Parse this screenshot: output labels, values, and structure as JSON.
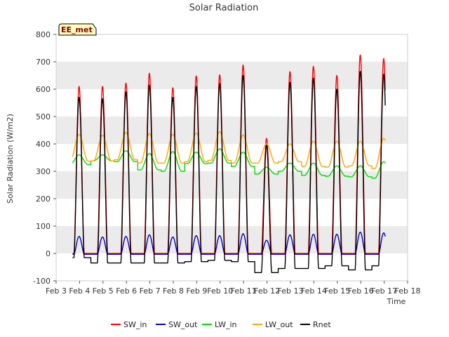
{
  "chart_data": {
    "type": "line",
    "title": "Solar Radiation",
    "xlabel": "Time",
    "ylabel": "Solar Radiation (W/m2)",
    "ylim": [
      -100,
      800
    ],
    "yticks": [
      -100,
      0,
      100,
      200,
      300,
      400,
      500,
      600,
      700,
      800
    ],
    "xlim": [
      3,
      18
    ],
    "xtick_values": [
      3,
      4,
      5,
      6,
      7,
      8,
      9,
      10,
      11,
      12,
      13,
      14,
      15,
      16,
      17,
      18
    ],
    "xtick_labels": [
      "Feb 3",
      "Feb 4",
      "Feb 5",
      "Feb 6",
      "Feb 7",
      "Feb 8",
      "Feb 9",
      "Feb 10",
      "Feb 11",
      "Feb 12",
      "Feb 13",
      "Feb 14",
      "Feb 15",
      "Feb 16",
      "Feb 17",
      "Feb 18"
    ],
    "grid": "horizontal bands",
    "station_label": "EE_met",
    "legend_position": "bottom",
    "day_centers": [
      3.98,
      4.98,
      5.98,
      6.98,
      7.98,
      8.98,
      9.98,
      10.98,
      11.98,
      12.98,
      13.98,
      14.98,
      15.98,
      16.98
    ],
    "series": [
      {
        "name": "SW_in",
        "color": "#ff0000",
        "kind": "daily_peak",
        "night": 0,
        "peaks": [
          610,
          610,
          622,
          658,
          605,
          648,
          652,
          688,
          420,
          664,
          683,
          650,
          725,
          712
        ]
      },
      {
        "name": "SW_out",
        "color": "#0000cc",
        "kind": "daily_peak",
        "night": -3,
        "peaks": [
          62,
          60,
          62,
          68,
          60,
          65,
          65,
          72,
          48,
          68,
          70,
          70,
          78,
          75
        ]
      },
      {
        "name": "LW_in",
        "color": "#00dd00",
        "kind": "daily_smooth",
        "night": [
          325,
          338,
          335,
          305,
          300,
          328,
          330,
          318,
          290,
          300,
          285,
          282,
          280,
          275
        ],
        "day": [
          360,
          360,
          375,
          365,
          372,
          370,
          382,
          370,
          315,
          330,
          330,
          320,
          320,
          335
        ]
      },
      {
        "name": "LW_out",
        "color": "#ffa500",
        "kind": "daily_smooth",
        "night": [
          337,
          338,
          342,
          330,
          330,
          335,
          340,
          330,
          330,
          335,
          318,
          315,
          320,
          310
        ],
        "day": [
          435,
          432,
          442,
          438,
          435,
          440,
          445,
          432,
          400,
          400,
          410,
          410,
          410,
          420
        ]
      },
      {
        "name": "Rnet",
        "color": "#000000",
        "kind": "daily_peak",
        "night": [
          -15,
          -35,
          -35,
          -35,
          -35,
          -30,
          -25,
          -30,
          -70,
          -55,
          -55,
          -45,
          -60,
          -45
        ],
        "peaks": [
          570,
          565,
          590,
          615,
          570,
          610,
          620,
          650,
          395,
          625,
          640,
          600,
          665,
          655
        ]
      }
    ]
  }
}
